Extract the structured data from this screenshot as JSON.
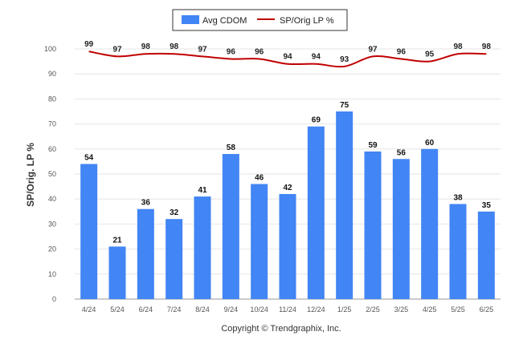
{
  "chart_data": {
    "type": "bar",
    "categories": [
      "4/24",
      "5/24",
      "6/24",
      "7/24",
      "8/24",
      "9/24",
      "10/24",
      "11/24",
      "12/24",
      "1/25",
      "2/25",
      "3/25",
      "4/25",
      "5/25",
      "6/25"
    ],
    "series": [
      {
        "name": "Avg CDOM",
        "type": "bar",
        "color": "#4285f4",
        "values": [
          54,
          21,
          36,
          32,
          41,
          58,
          46,
          42,
          69,
          75,
          59,
          56,
          60,
          38,
          35
        ]
      },
      {
        "name": "SP/Orig LP %",
        "type": "line",
        "color": "#c00000",
        "values": [
          99,
          97,
          98,
          98,
          97,
          96,
          96,
          94,
          94,
          93,
          97,
          96,
          95,
          98,
          98
        ]
      }
    ],
    "ylabel": "SP/Orig. LP %",
    "yticks": [
      0,
      10,
      20,
      30,
      40,
      50,
      60,
      70,
      80,
      90,
      100
    ],
    "ylim": [
      0,
      100
    ],
    "grid": true,
    "legend_position": "top-center",
    "footer": "Copyright © Trendgraphix, Inc."
  }
}
